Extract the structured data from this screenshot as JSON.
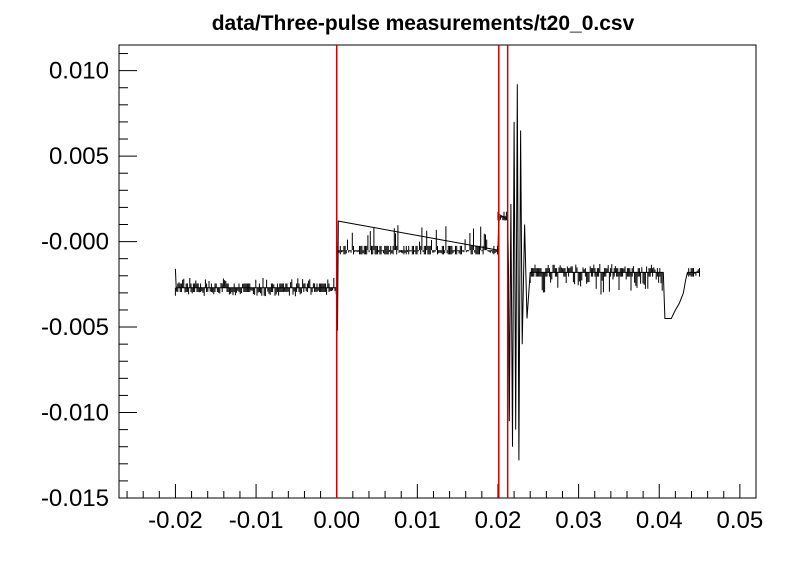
{
  "chart_data": {
    "type": "line",
    "title": "data/Three-pulse measurements/t20_0.csv",
    "xlabel": "",
    "ylabel": "",
    "xlim": [
      -0.027,
      0.052
    ],
    "ylim": [
      -0.015,
      0.0115
    ],
    "x_ticks": [
      -0.02,
      -0.01,
      0.0,
      0.01,
      0.02,
      0.03,
      0.04,
      0.05
    ],
    "x_tick_labels": [
      "-0.02",
      "-0.01",
      "0.00",
      "0.01",
      "0.02",
      "0.03",
      "0.04",
      "0.05"
    ],
    "y_ticks": [
      0.01,
      0.005,
      0.0,
      -0.005,
      -0.01,
      -0.015
    ],
    "y_tick_labels": [
      "0.010",
      "0.005",
      "-0.000",
      "-0.005",
      "-0.010",
      "-0.015"
    ],
    "grid": false,
    "colors": {
      "trace": "#000000",
      "markers": "#cc0000",
      "frame": "#000000"
    },
    "vertical_markers": [
      0.0,
      0.0201,
      0.0212
    ],
    "series": [
      {
        "segments": [
          {
            "x_start": -0.02,
            "x_end": 0.0,
            "base": -0.0027,
            "noise_low": -0.0032,
            "noise_high": -0.0021
          },
          {
            "x_start": 0.0,
            "x_end": 0.02,
            "base": -0.0005,
            "noise_low": -0.0007,
            "noise_high": 0.0011
          },
          {
            "x_start": 0.02,
            "x_end": 0.0212,
            "base": 0.0015,
            "noise_low": 0.0012,
            "noise_high": 0.0017
          },
          {
            "x_start": 0.024,
            "x_end": 0.0405,
            "base": -0.0018,
            "noise_low": -0.0031,
            "noise_high": -0.0013
          },
          {
            "x_start": 0.0435,
            "x_end": 0.045,
            "base": -0.0018,
            "noise_low": -0.002,
            "noise_high": -0.0016
          }
        ],
        "points": [
          [
            -0.02,
            -0.0016
          ],
          [
            -0.0199,
            -0.0027
          ],
          [
            0.0,
            -0.0027
          ],
          [
            0.0001,
            -0.0052
          ],
          [
            0.0002,
            0.0012
          ],
          [
            0.02,
            -0.0005
          ],
          [
            0.0201,
            0.0016
          ],
          [
            0.0212,
            0.0013
          ],
          [
            0.0213,
            -0.0015
          ],
          [
            0.0214,
            -0.0105
          ],
          [
            0.0216,
            0.0022
          ],
          [
            0.0218,
            -0.012
          ],
          [
            0.022,
            0.007
          ],
          [
            0.0222,
            -0.011
          ],
          [
            0.0224,
            0.0092
          ],
          [
            0.0226,
            -0.0128
          ],
          [
            0.0228,
            0.0065
          ],
          [
            0.023,
            -0.006
          ],
          [
            0.0233,
            0.001
          ],
          [
            0.0236,
            -0.0045
          ],
          [
            0.024,
            -0.0018
          ],
          [
            0.0405,
            -0.0018
          ],
          [
            0.0407,
            -0.0045
          ],
          [
            0.0415,
            -0.0045
          ],
          [
            0.0416,
            -0.0044
          ],
          [
            0.042,
            -0.004
          ],
          [
            0.0425,
            -0.0036
          ],
          [
            0.043,
            -0.003
          ],
          [
            0.0433,
            -0.0022
          ],
          [
            0.0435,
            -0.0018
          ],
          [
            0.045,
            -0.0018
          ]
        ]
      }
    ]
  }
}
